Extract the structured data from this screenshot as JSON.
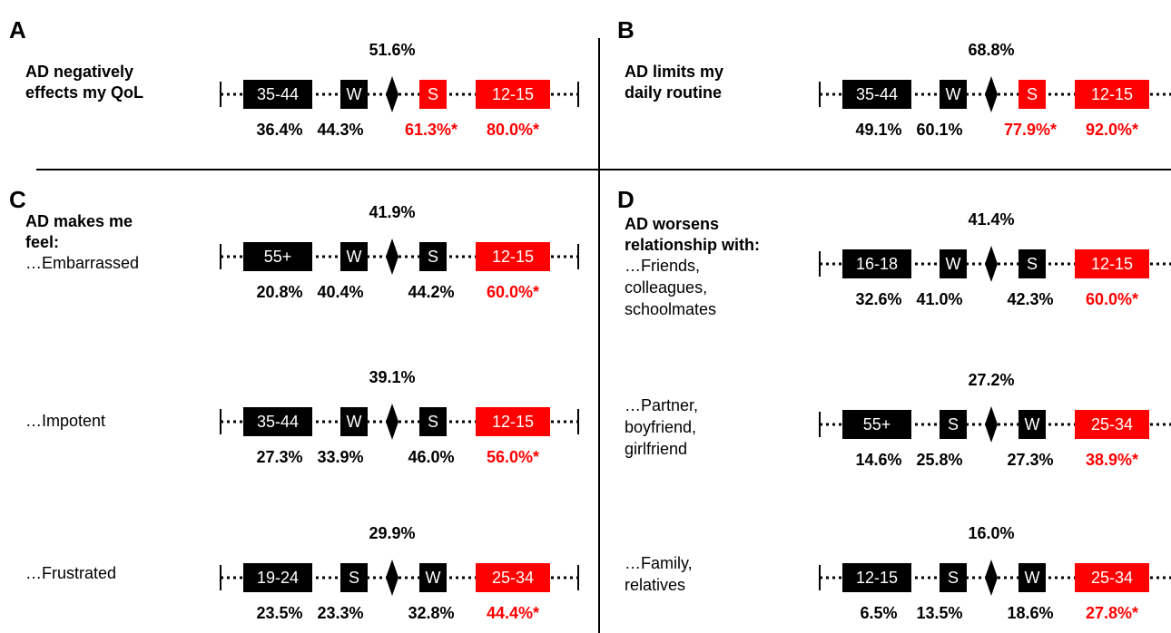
{
  "panels": [
    {
      "letter": "A",
      "rows": [
        {
          "heading": [
            "AD negatively",
            "effects my QoL"
          ],
          "label": [],
          "center": "51.6%",
          "boxes": [
            {
              "text": "35-44",
              "color": "#000000"
            },
            {
              "text": "W",
              "color": "#000000"
            },
            {
              "text": "S",
              "color": "#ff0000"
            },
            {
              "text": "12-15",
              "color": "#ff0000"
            }
          ],
          "values": [
            {
              "text": "36.4%",
              "color": "#000000"
            },
            {
              "text": "44.3%",
              "color": "#000000"
            },
            {
              "text": "61.3%*",
              "color": "#ff0000"
            },
            {
              "text": "80.0%*",
              "color": "#ff0000"
            }
          ]
        }
      ]
    },
    {
      "letter": "B",
      "rows": [
        {
          "heading": [
            "AD limits my",
            "daily routine"
          ],
          "label": [],
          "center": "68.8%",
          "boxes": [
            {
              "text": "35-44",
              "color": "#000000"
            },
            {
              "text": "W",
              "color": "#000000"
            },
            {
              "text": "S",
              "color": "#ff0000"
            },
            {
              "text": "12-15",
              "color": "#ff0000"
            }
          ],
          "values": [
            {
              "text": "49.1%",
              "color": "#000000"
            },
            {
              "text": "60.1%",
              "color": "#000000"
            },
            {
              "text": "77.9%*",
              "color": "#ff0000"
            },
            {
              "text": "92.0%*",
              "color": "#ff0000"
            }
          ]
        }
      ]
    },
    {
      "letter": "C",
      "rows": [
        {
          "heading": [
            "AD  makes  me",
            "feel:"
          ],
          "label": [
            "…Embarrassed"
          ],
          "center": "41.9%",
          "boxes": [
            {
              "text": "55+",
              "color": "#000000"
            },
            {
              "text": "W",
              "color": "#000000"
            },
            {
              "text": "S",
              "color": "#000000"
            },
            {
              "text": "12-15",
              "color": "#ff0000"
            }
          ],
          "values": [
            {
              "text": "20.8%",
              "color": "#000000"
            },
            {
              "text": "40.4%",
              "color": "#000000"
            },
            {
              "text": "44.2%",
              "color": "#000000"
            },
            {
              "text": "60.0%*",
              "color": "#ff0000"
            }
          ]
        },
        {
          "heading": [],
          "label": [
            "…Impotent"
          ],
          "center": "39.1%",
          "boxes": [
            {
              "text": "35-44",
              "color": "#000000"
            },
            {
              "text": "W",
              "color": "#000000"
            },
            {
              "text": "S",
              "color": "#000000"
            },
            {
              "text": "12-15",
              "color": "#ff0000"
            }
          ],
          "values": [
            {
              "text": "27.3%",
              "color": "#000000"
            },
            {
              "text": "33.9%",
              "color": "#000000"
            },
            {
              "text": "46.0%",
              "color": "#000000"
            },
            {
              "text": "56.0%*",
              "color": "#ff0000"
            }
          ]
        },
        {
          "heading": [],
          "label": [
            "…Frustrated"
          ],
          "center": "29.9%",
          "boxes": [
            {
              "text": "19-24",
              "color": "#000000"
            },
            {
              "text": "S",
              "color": "#000000"
            },
            {
              "text": "W",
              "color": "#000000"
            },
            {
              "text": "25-34",
              "color": "#ff0000"
            }
          ],
          "values": [
            {
              "text": "23.5%",
              "color": "#000000"
            },
            {
              "text": "23.3%",
              "color": "#000000"
            },
            {
              "text": "32.8%",
              "color": "#000000"
            },
            {
              "text": "44.4%*",
              "color": "#ff0000"
            }
          ]
        }
      ]
    },
    {
      "letter": "D",
      "rows": [
        {
          "heading": [
            "AD worsens",
            "relationship with:"
          ],
          "label": [
            "…Friends,",
            "colleagues,",
            "schoolmates"
          ],
          "center": "41.4%",
          "boxes": [
            {
              "text": "16-18",
              "color": "#000000"
            },
            {
              "text": "W",
              "color": "#000000"
            },
            {
              "text": "S",
              "color": "#000000"
            },
            {
              "text": "12-15",
              "color": "#ff0000"
            }
          ],
          "values": [
            {
              "text": "32.6%",
              "color": "#000000"
            },
            {
              "text": "41.0%",
              "color": "#000000"
            },
            {
              "text": "42.3%",
              "color": "#000000"
            },
            {
              "text": "60.0%*",
              "color": "#ff0000"
            }
          ]
        },
        {
          "heading": [],
          "label": [
            "…Partner,",
            "boyfriend,",
            "girlfriend"
          ],
          "center": "27.2%",
          "boxes": [
            {
              "text": "55+",
              "color": "#000000"
            },
            {
              "text": "S",
              "color": "#000000"
            },
            {
              "text": "W",
              "color": "#000000"
            },
            {
              "text": "25-34",
              "color": "#ff0000"
            }
          ],
          "values": [
            {
              "text": "14.6%",
              "color": "#000000"
            },
            {
              "text": "25.8%",
              "color": "#000000"
            },
            {
              "text": "27.3%",
              "color": "#000000"
            },
            {
              "text": "38.9%*",
              "color": "#ff0000"
            }
          ]
        },
        {
          "heading": [],
          "label": [
            "…Family,",
            "relatives"
          ],
          "center": "16.0%",
          "boxes": [
            {
              "text": "12-15",
              "color": "#000000"
            },
            {
              "text": "S",
              "color": "#000000"
            },
            {
              "text": "W",
              "color": "#000000"
            },
            {
              "text": "25-34",
              "color": "#ff0000"
            }
          ],
          "values": [
            {
              "text": "6.5%",
              "color": "#000000"
            },
            {
              "text": "13.5%",
              "color": "#000000"
            },
            {
              "text": "18.6%",
              "color": "#000000"
            },
            {
              "text": "27.8%*",
              "color": "#ff0000"
            }
          ]
        }
      ]
    }
  ]
}
